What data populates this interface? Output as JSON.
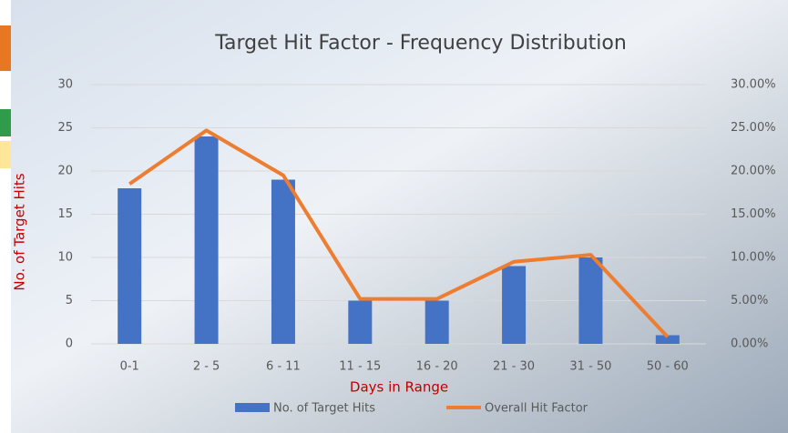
{
  "chart_data": {
    "type": "bar-line",
    "title": "Target Hit Factor - Frequency Distribution",
    "y_label": "No. of Target Hits",
    "x_label": "Days in Range",
    "categories": [
      "0-1",
      "2 - 5",
      "6 - 11",
      "11 - 15",
      "16 - 20",
      "21 - 30",
      "31 - 50",
      "50 - 60"
    ],
    "series": [
      {
        "name": "No. of Target Hits",
        "type": "bar",
        "color": "#4472c4",
        "values": [
          18,
          24,
          19,
          5,
          5,
          9,
          10,
          1
        ]
      },
      {
        "name": "Overall Hit Factor",
        "type": "line",
        "color": "#ed7d31",
        "axis": "y2",
        "values": [
          18.5,
          24.7,
          19.5,
          5.2,
          5.2,
          9.5,
          10.3,
          0.8
        ]
      }
    ],
    "ylim": [
      0,
      30
    ],
    "yticks": [
      0,
      5,
      10,
      15,
      20,
      25,
      30
    ],
    "y2lim": [
      0,
      30
    ],
    "y2ticks": [
      {
        "value": 0,
        "label": "0.00%"
      },
      {
        "value": 5,
        "label": "5.00%"
      },
      {
        "value": 10,
        "label": "10.00%"
      },
      {
        "value": 15,
        "label": "15.00%"
      },
      {
        "value": 20,
        "label": "20.00%"
      },
      {
        "value": 25,
        "label": "25.00%"
      },
      {
        "value": 30,
        "label": "30.00%"
      }
    ],
    "grid": true,
    "legend": "bottom"
  }
}
